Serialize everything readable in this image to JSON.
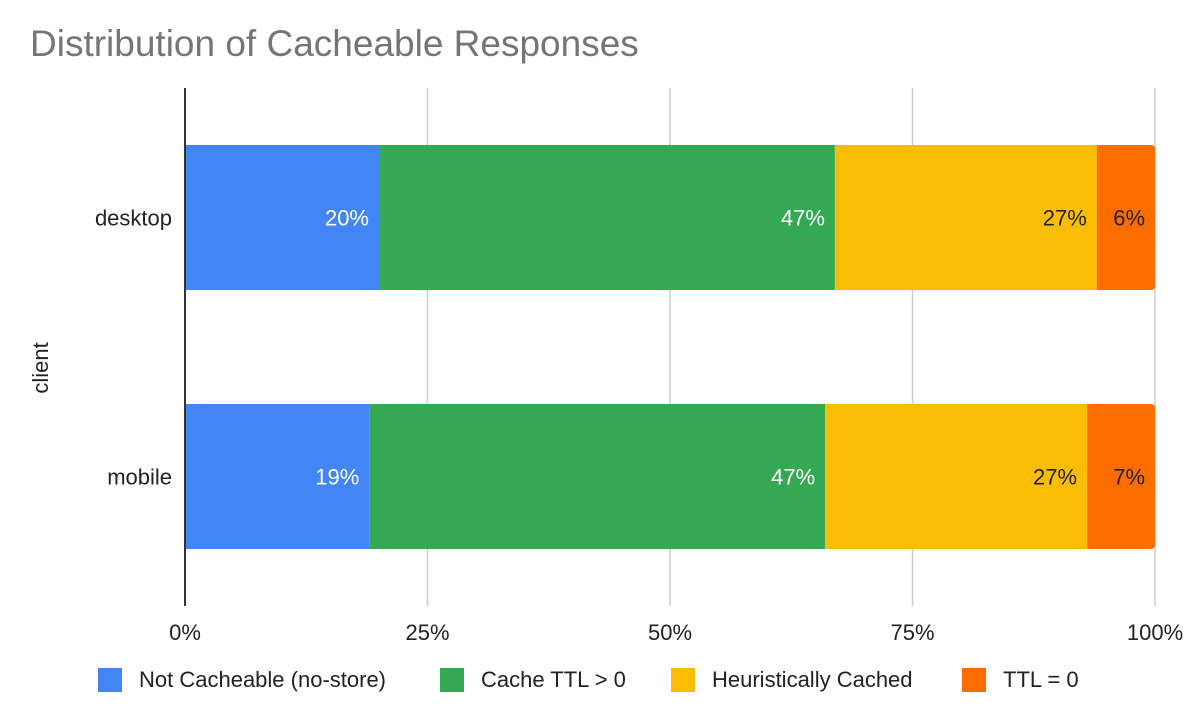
{
  "chart_data": {
    "type": "bar",
    "orientation": "horizontal",
    "stacked": true,
    "title": "Distribution of Cacheable Responses",
    "ylabel": "client",
    "xlabel": "",
    "categories": [
      "desktop",
      "mobile"
    ],
    "xlim": [
      0,
      1
    ],
    "x_ticks": [
      "0%",
      "25%",
      "50%",
      "75%",
      "100%"
    ],
    "x_tick_values": [
      0,
      0.25,
      0.5,
      0.75,
      1.0
    ],
    "grid": true,
    "legend_position": "bottom",
    "series": [
      {
        "name": "Not Cacheable (no-store)",
        "color": "#4285F4",
        "label_color": "#ffffff",
        "values": [
          0.2,
          0.19
        ],
        "labels": [
          "20%",
          "19%"
        ]
      },
      {
        "name": "Cache TTL > 0",
        "color": "#34A853",
        "label_color": "#ffffff",
        "values": [
          0.47,
          0.47
        ],
        "labels": [
          "47%",
          "47%"
        ]
      },
      {
        "name": "Heuristically Cached",
        "color": "#FBBC04",
        "label_color": "#222222",
        "values": [
          0.27,
          0.27
        ],
        "labels": [
          "27%",
          "27%"
        ]
      },
      {
        "name": "TTL = 0",
        "color": "#FF6D01",
        "label_color": "#222222",
        "values": [
          0.06,
          0.07
        ],
        "labels": [
          "6%",
          "7%"
        ]
      }
    ]
  }
}
